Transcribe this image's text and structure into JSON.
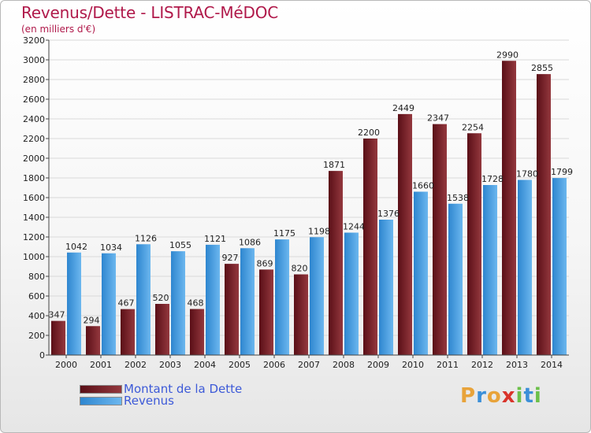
{
  "title": "Revenus/Dette - LISTRAC-MéDOC",
  "subtitle": "(en milliers d'€)",
  "logo": {
    "letters": [
      "P",
      "r",
      "o",
      "x",
      "i",
      "t",
      "i"
    ],
    "colors": [
      "#e8a33a",
      "#3b8fd8",
      "#e8a33a",
      "#d9342b",
      "#6cc04a",
      "#3b8fd8",
      "#6cc04a"
    ]
  },
  "colors": {
    "debt_dark": "#5a0f17",
    "debt_light": "#94383e",
    "rev_dark": "#2e86cf",
    "rev_light": "#6cb7ef",
    "axis": "#444444",
    "grid": "#d9d9d9"
  },
  "chart_data": {
    "type": "bar",
    "categories": [
      "2000",
      "2001",
      "2002",
      "2003",
      "2004",
      "2005",
      "2006",
      "2007",
      "2008",
      "2009",
      "2010",
      "2011",
      "2012",
      "2013",
      "2014"
    ],
    "series": [
      {
        "name": "Montant de la Dette",
        "values": [
          347,
          294,
          467,
          520,
          468,
          927,
          869,
          820,
          1871,
          2200,
          2449,
          2347,
          2254,
          2990,
          2855
        ]
      },
      {
        "name": "Revenus",
        "values": [
          1042,
          1034,
          1126,
          1055,
          1121,
          1086,
          1175,
          1198,
          1244,
          1376,
          1660,
          1538,
          1728,
          1780,
          1799
        ]
      }
    ],
    "y_ticks": [
      0,
      200,
      400,
      600,
      800,
      1000,
      1200,
      1400,
      1600,
      1800,
      2000,
      2200,
      2400,
      2600,
      2800,
      3000,
      3200
    ],
    "ylim": [
      0,
      3200
    ],
    "grid": true,
    "legend_position": "bottom-left"
  }
}
